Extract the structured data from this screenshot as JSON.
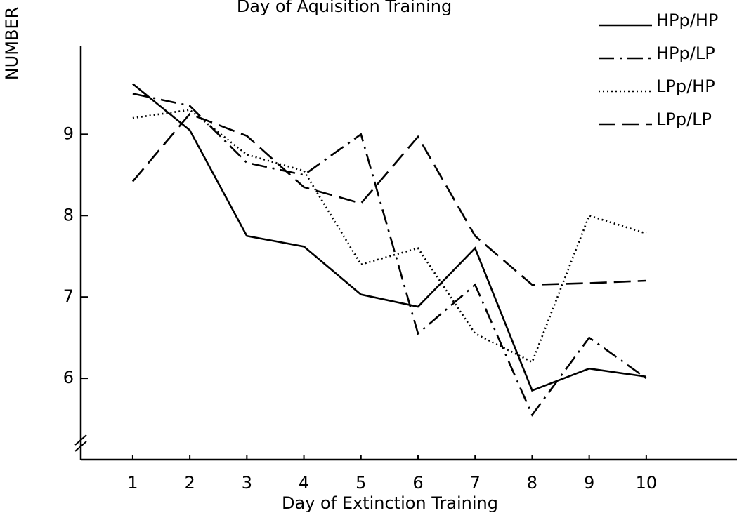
{
  "chart_data": {
    "type": "line",
    "title": "Day of Aquisition Training",
    "ylabel": "NUMBER",
    "xlabel": "Day of Extinction Training",
    "x": [
      1,
      2,
      3,
      4,
      5,
      6,
      7,
      8,
      9,
      10
    ],
    "xlim": [
      0.09,
      11.59
    ],
    "xticks": [
      1,
      2,
      3,
      4,
      5,
      6,
      7,
      8,
      9,
      10
    ],
    "ylim": [
      5,
      10.09
    ],
    "yticks": [
      6,
      7,
      8,
      9
    ],
    "series": [
      {
        "name": "HPp/HP",
        "color": "#000000",
        "dash": "solid",
        "values": [
          9.62,
          9.05,
          7.75,
          7.62,
          7.03,
          6.88,
          7.6,
          5.85,
          6.12,
          6.02
        ]
      },
      {
        "name": "HPp/LP",
        "color": "#000000",
        "dash": "dashdot",
        "values": [
          9.5,
          9.35,
          8.65,
          8.5,
          9.0,
          6.55,
          7.15,
          5.55,
          6.5,
          6.0
        ]
      },
      {
        "name": "LPp/HP",
        "color": "#000000",
        "dash": "dotted",
        "values": [
          9.2,
          9.3,
          8.75,
          8.55,
          7.4,
          7.6,
          6.55,
          6.2,
          8.0,
          7.78
        ]
      },
      {
        "name": "LPp/LP",
        "color": "#000000",
        "dash": "dashed",
        "values": [
          8.42,
          9.25,
          8.98,
          8.35,
          8.15,
          8.97,
          7.75,
          7.15,
          7.17,
          7.2
        ]
      }
    ]
  }
}
